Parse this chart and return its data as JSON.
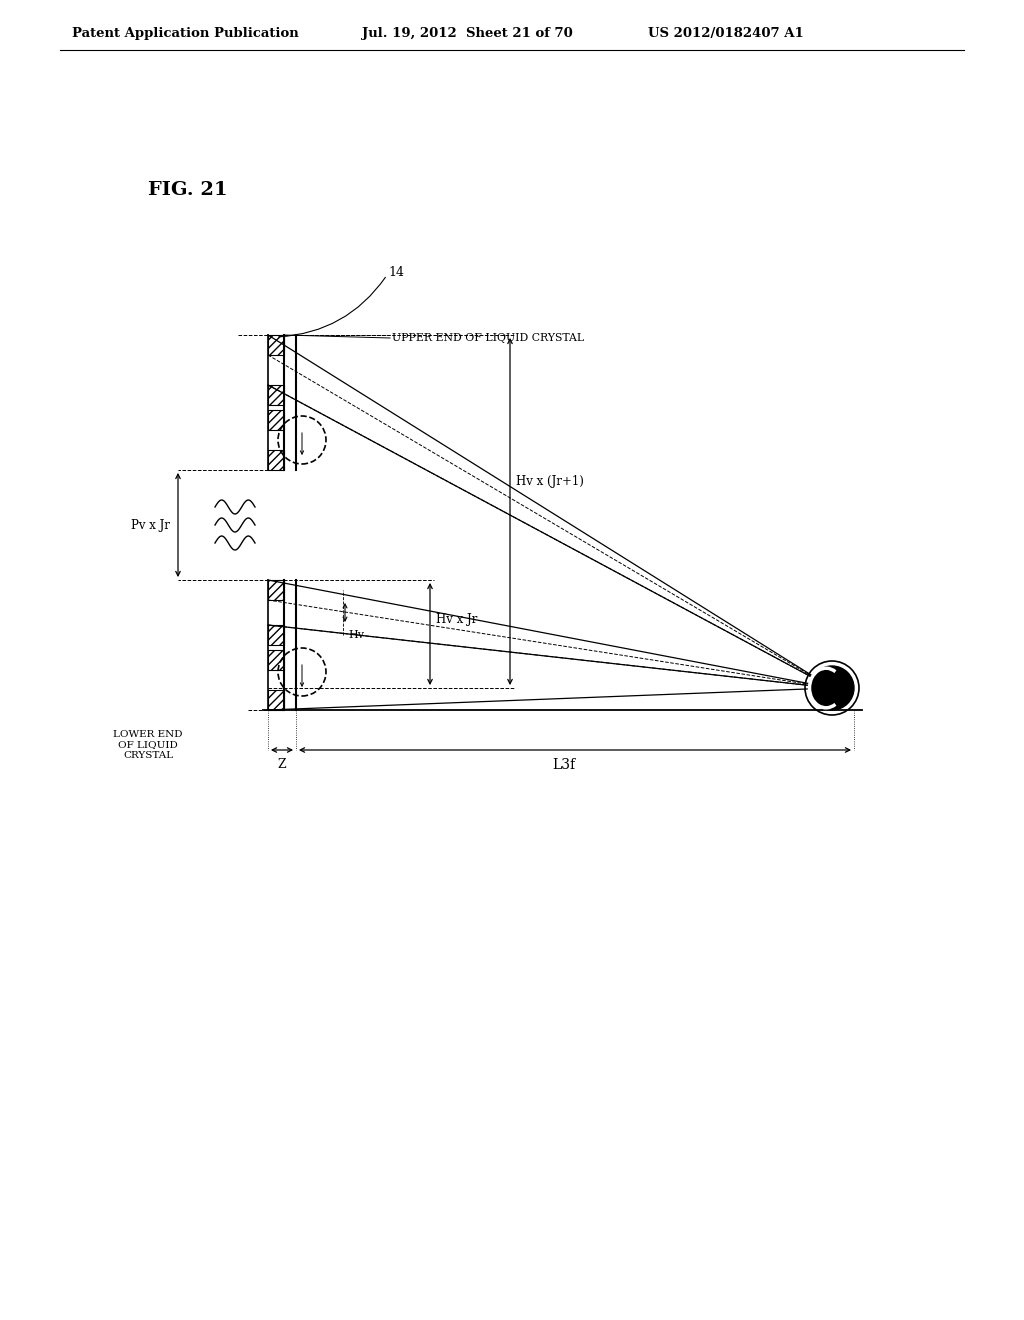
{
  "title": "FIG. 21",
  "header_left": "Patent Application Publication",
  "header_mid": "Jul. 19, 2012  Sheet 21 of 70",
  "header_right": "US 2012/0182407 A1",
  "bg_color": "#ffffff",
  "label_14": "14",
  "label_upper": "UPPER END OF LIQUID CRYSTAL",
  "label_lower": "LOWER END\nOF LIQUID\nCRYSTAL",
  "label_pv_jr": "Pv x Jr",
  "label_hv_jr1": "Hv x (Jr+1)",
  "label_hv_jr": "Hv x Jr",
  "label_hv": "Hv",
  "label_z": "Z",
  "label_l3f": "L3f"
}
